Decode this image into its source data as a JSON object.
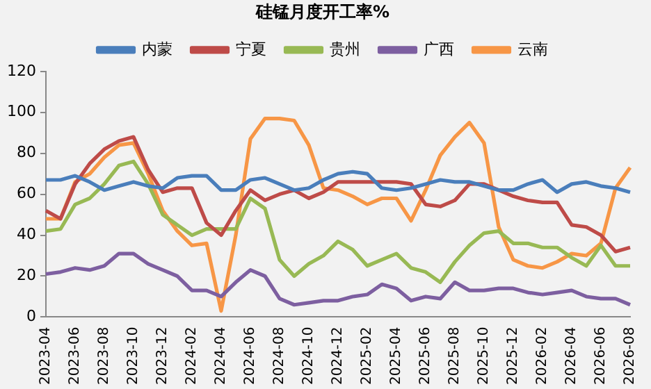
{
  "chart_data": {
    "type": "line",
    "title": "硅锰月度开工率%",
    "categories": [
      "2023-04",
      null,
      "2023-06",
      null,
      "2023-08",
      null,
      "2023-10",
      null,
      "2023-12",
      null,
      "2024-02",
      null,
      "2024-04",
      null,
      "2024-06",
      null,
      "2024-08",
      null,
      "2024-10",
      null,
      "2024-12",
      null,
      "2025-02",
      null,
      "2025-04",
      null,
      "2025-06",
      null,
      "2025-08",
      null,
      "2025-10",
      null,
      "2025-12",
      null,
      "2026-02",
      null,
      "2026-04",
      null,
      "2026-06",
      null,
      "2026-08"
    ],
    "series": [
      {
        "name": "内蒙",
        "color": "#4a7ebb",
        "values": [
          67,
          67,
          69,
          66,
          62,
          64,
          66,
          64,
          63,
          68,
          69,
          69,
          62,
          62,
          67,
          68,
          65,
          62,
          63,
          67,
          70,
          71,
          70,
          63,
          62,
          63,
          65,
          67,
          66,
          66,
          64,
          62,
          62,
          65,
          67,
          61,
          65,
          66,
          64,
          63,
          61
        ]
      },
      {
        "name": "宁夏",
        "color": "#be4b48",
        "values": [
          52,
          48,
          65,
          75,
          82,
          86,
          88,
          72,
          61,
          63,
          63,
          46,
          40,
          52,
          62,
          57,
          60,
          62,
          58,
          61,
          66,
          66,
          66,
          66,
          66,
          65,
          55,
          54,
          57,
          65,
          65,
          62,
          59,
          57,
          56,
          56,
          45,
          44,
          40,
          32,
          34
        ]
      },
      {
        "name": "贵州",
        "color": "#98b954",
        "values": [
          42,
          43,
          55,
          58,
          65,
          74,
          76,
          65,
          50,
          45,
          40,
          43,
          43,
          43,
          58,
          53,
          28,
          20,
          26,
          30,
          37,
          33,
          25,
          28,
          31,
          24,
          22,
          17,
          27,
          35,
          41,
          42,
          36,
          36,
          34,
          34,
          29,
          25,
          35,
          25,
          25
        ]
      },
      {
        "name": "广西",
        "color": "#7d5fa0",
        "values": [
          21,
          22,
          24,
          23,
          25,
          31,
          31,
          26,
          23,
          20,
          13,
          13,
          10,
          17,
          23,
          20,
          9,
          6,
          7,
          8,
          8,
          10,
          11,
          16,
          14,
          8,
          10,
          9,
          17,
          13,
          13,
          14,
          14,
          12,
          11,
          12,
          13,
          10,
          9,
          9,
          6
        ]
      },
      {
        "name": "云南",
        "color": "#f79646",
        "values": [
          48,
          48,
          66,
          70,
          78,
          84,
          85,
          70,
          52,
          42,
          35,
          36,
          3,
          40,
          87,
          97,
          97,
          96,
          84,
          63,
          62,
          59,
          55,
          58,
          58,
          47,
          62,
          79,
          88,
          95,
          85,
          44,
          28,
          25,
          24,
          27,
          31,
          30,
          36,
          63,
          73
        ]
      }
    ],
    "ylim": [
      0,
      120
    ],
    "yticks": [
      0,
      20,
      40,
      60,
      80,
      100,
      120
    ],
    "grid": false,
    "legend": "top",
    "marker": "none",
    "line_style": "solid"
  }
}
